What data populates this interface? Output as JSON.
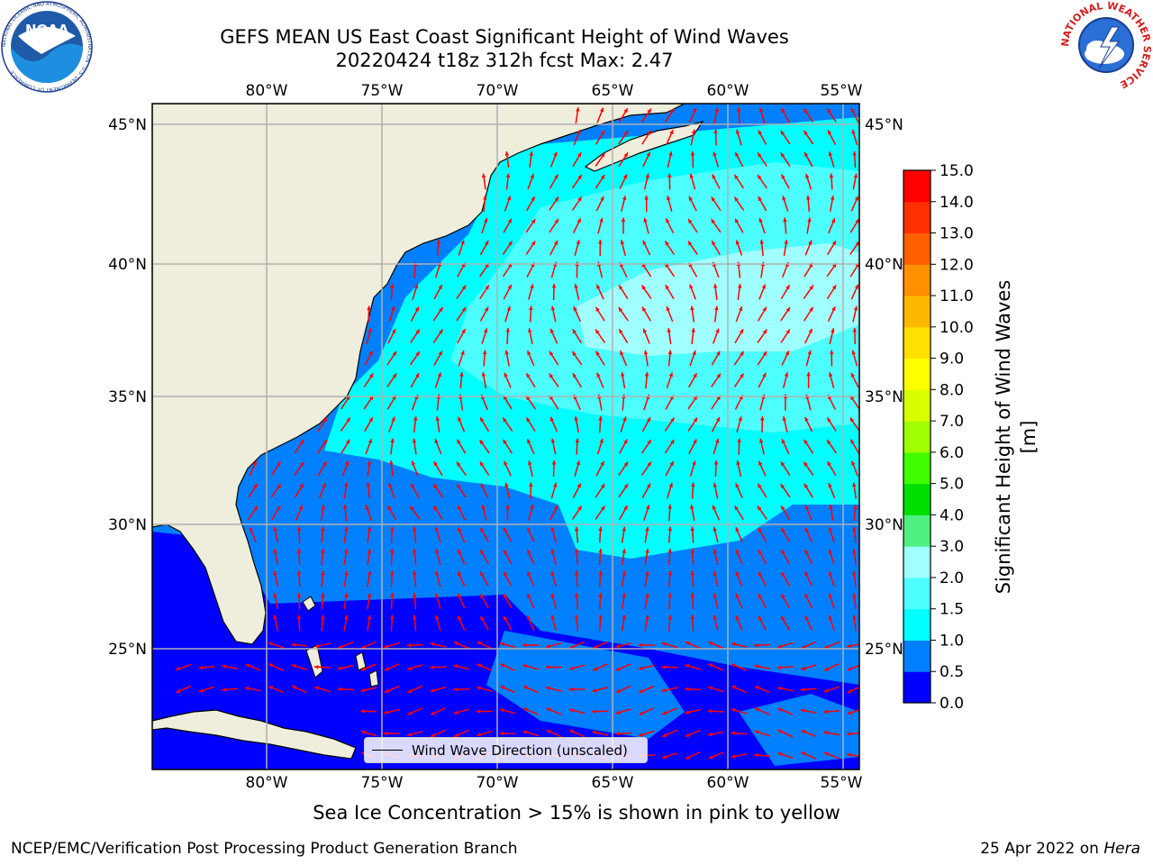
{
  "header": {
    "title_line1": "GEFS MEAN US East Coast Significant Height of Wind Waves",
    "title_line2": "20220424 t18z 312h fcst   Max: 2.47"
  },
  "logos": {
    "left": {
      "text": "NOAA",
      "ring_text": "NATIONAL OCEANIC AND ATMOSPHERIC ADMINISTRATION · U.S. DEPARTMENT OF COMMERCE"
    },
    "right": {
      "ring_text": "NATIONAL WEATHER SERVICE"
    }
  },
  "map": {
    "lon_ticks": [
      "80°W",
      "75°W",
      "70°W",
      "65°W",
      "60°W",
      "55°W"
    ],
    "lat_ticks": [
      "45°N",
      "40°N",
      "35°N",
      "30°N",
      "25°N"
    ],
    "lon_values": [
      -80,
      -75,
      -70,
      -65,
      -60,
      -55
    ],
    "lat_values": [
      45,
      40,
      35,
      30,
      25
    ],
    "extent": {
      "lon": [
        -85,
        -54.3
      ],
      "lat": [
        20.1,
        45.9
      ]
    },
    "colors": {
      "land": "#efeddc",
      "arrow": "#ff0000",
      "grid": "#b0b0b0"
    }
  },
  "legend": {
    "label": "Wind Wave Direction (unscaled)"
  },
  "colorbar": {
    "label": "Significant Height of Wind Waves [m]",
    "ticks": [
      "0.0",
      "0.5",
      "1.0",
      "1.5",
      "2.0",
      "3.0",
      "4.0",
      "5.0",
      "6.0",
      "7.0",
      "8.0",
      "9.0",
      "10.0",
      "11.0",
      "12.0",
      "13.0",
      "14.0",
      "15.0"
    ],
    "colors": [
      "#0000ff",
      "#0080ff",
      "#00ffff",
      "#4dffff",
      "#a0ffff",
      "#50f080",
      "#00e000",
      "#40ff00",
      "#a0ff00",
      "#d8ff00",
      "#ffff00",
      "#ffe000",
      "#ffb800",
      "#ff9000",
      "#ff6000",
      "#ff3000",
      "#ff0000"
    ]
  },
  "subtitle": "Sea Ice Concentration > 15% is shown in pink to yellow",
  "footer": {
    "left": "NCEP/EMC/Verification Post Processing Product Generation Branch",
    "right_date": "25 Apr 2022 on",
    "right_machine": "Hera"
  }
}
